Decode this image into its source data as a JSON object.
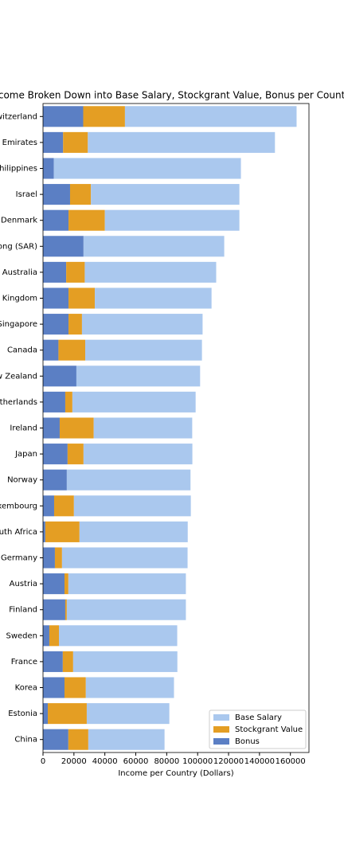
{
  "chart_data": {
    "type": "stacked_barh",
    "title": "Income Broken Down into Base Salary, Stockgrant Value, Bonus per Country",
    "x_label": "Income per Country (Dollars)",
    "categories": [
      "Switzerland",
      "United Arab Emirates",
      "Philippines",
      "Israel",
      "Denmark",
      "Hong Kong (SAR)",
      "Australia",
      "United Kingdom",
      "Singapore",
      "Canada",
      "New Zealand",
      "Netherlands",
      "Ireland",
      "Japan",
      "Norway",
      "Luxembourg",
      "South Africa",
      "Germany",
      "Austria",
      "Finland",
      "Sweden",
      "France",
      "Korea",
      "Estonia",
      "China"
    ],
    "series": [
      {
        "name": "Base Salary",
        "color": "#aac8ee",
        "values": [
          111000,
          121000,
          121000,
          96000,
          87000,
          91000,
          85000,
          75500,
          78000,
          75500,
          80000,
          79700,
          63700,
          70400,
          80000,
          75600,
          70000,
          81200,
          76000,
          77000,
          76500,
          67400,
          57000,
          53400,
          49300
        ]
      },
      {
        "name": "Stockgrant Value",
        "color": "#e49e23",
        "values": [
          27000,
          16000,
          0,
          13500,
          23500,
          0,
          12000,
          17000,
          8700,
          17300,
          0,
          4600,
          22000,
          10300,
          0,
          12800,
          22100,
          4600,
          2500,
          1000,
          6200,
          6700,
          13800,
          25200,
          12900
        ]
      },
      {
        "name": "Bonus",
        "color": "#5b7fc4",
        "values": [
          26000,
          13000,
          7000,
          17500,
          16500,
          26200,
          15000,
          16500,
          16500,
          10000,
          21600,
          14400,
          10800,
          15900,
          15400,
          7200,
          1500,
          7700,
          13900,
          14400,
          4100,
          12800,
          13900,
          3100,
          16400
        ]
      }
    ],
    "xlim": [
      0,
      172000
    ],
    "xticks": [
      0,
      20000,
      40000,
      60000,
      80000,
      100000,
      120000,
      140000,
      160000
    ],
    "legend": "lower right"
  }
}
